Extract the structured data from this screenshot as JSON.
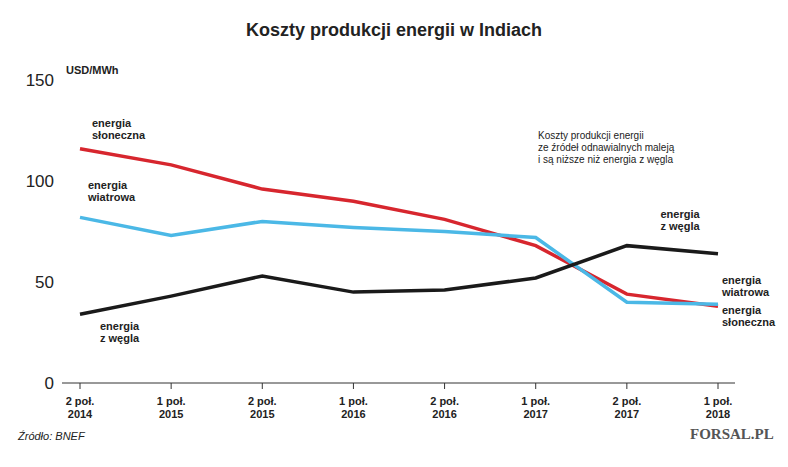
{
  "chart_data": {
    "type": "line",
    "title": "Koszty produkcji energii w Indiach",
    "y_label": "USD/MWh",
    "categories": [
      "2 poł. 2014",
      "1 poł. 2015",
      "2 poł. 2015",
      "1 poł. 2016",
      "2 poł. 2016",
      "1 poł. 2017",
      "2 poł. 2017",
      "1 poł. 2018"
    ],
    "series": [
      {
        "name": "energia słoneczna",
        "color": "#d7262e",
        "values": [
          116,
          108,
          96,
          90,
          81,
          68,
          44,
          38
        ]
      },
      {
        "name": "energia wiatrowa",
        "color": "#4bb8e6",
        "values": [
          82,
          73,
          80,
          77,
          75,
          72,
          40,
          39
        ]
      },
      {
        "name": "energia z węgla",
        "color": "#1a1a1a",
        "values": [
          34,
          43,
          53,
          45,
          46,
          52,
          68,
          64
        ]
      }
    ],
    "ylim": [
      0,
      150
    ],
    "yticks": [
      0,
      50,
      100,
      150
    ],
    "grid": false,
    "annotation": "Koszty produkcji energii\nze źródeł odnawialnych maleją\ni są niższe niż energia z węgla",
    "source": "Źródło: BNEF",
    "logo": "FORSAL.PL"
  }
}
